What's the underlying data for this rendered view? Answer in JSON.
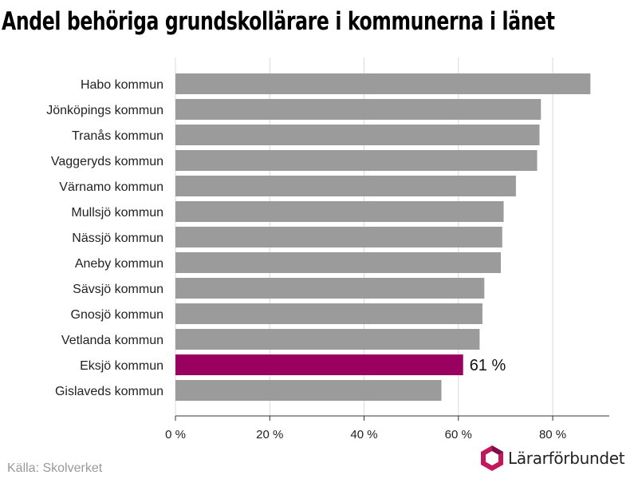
{
  "title": "Andel behöriga grundskollärare i kommunerna i länet",
  "source": "Källa: Skolverket",
  "logo_text": "Lärarförbundet",
  "colors": {
    "bar": "#9b9b9b",
    "highlight": "#99005f",
    "grid": "#d9d9d9",
    "axis": "#333333",
    "logo_pink": "#c2185b",
    "logo_dark": "#7a0d4a"
  },
  "chart_data": {
    "type": "bar",
    "orientation": "horizontal",
    "categories": [
      "Habo kommun",
      "Jönköpings kommun",
      "Tranås kommun",
      "Vaggeryds kommun",
      "Värnamo kommun",
      "Mullsjö kommun",
      "Nässjö kommun",
      "Aneby kommun",
      "Sävsjö kommun",
      "Gnosjö kommun",
      "Vetlanda kommun",
      "Eksjö kommun",
      "Gislaveds kommun"
    ],
    "values": [
      88,
      77.5,
      77.2,
      76.7,
      72.2,
      69.6,
      69.3,
      69,
      65.5,
      65.1,
      64.5,
      61,
      56.4
    ],
    "highlight_index": 11,
    "highlight_label": "61 %",
    "xlim": [
      0,
      92
    ],
    "xticks": [
      0,
      20,
      40,
      60,
      80
    ],
    "xtick_labels": [
      "0 %",
      "20 %",
      "40 %",
      "60 %",
      "80 %"
    ],
    "grid": true,
    "legend": "none"
  }
}
